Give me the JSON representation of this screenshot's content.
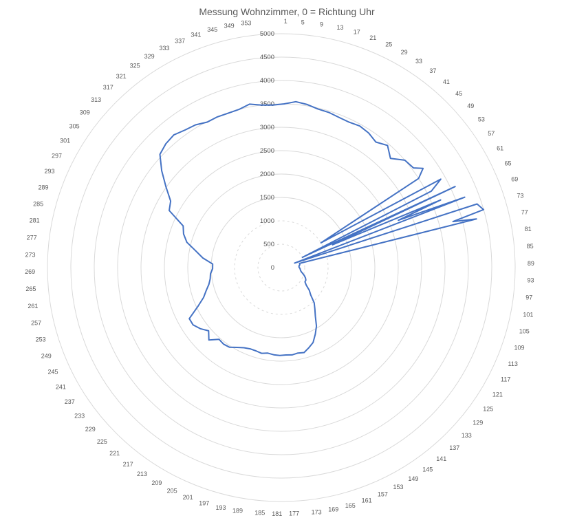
{
  "chart_data": {
    "type": "radar",
    "title": "Messung Wohnzimmer, 0 = Richtung Uhr",
    "radial_axis": {
      "min": 0,
      "max": 5000,
      "step": 500,
      "labels": [
        "0",
        "500",
        "1000",
        "1500",
        "2000",
        "2500",
        "3000",
        "3500",
        "4000",
        "4500",
        "5000"
      ]
    },
    "angle_labels": [
      "1",
      "5",
      "9",
      "13",
      "17",
      "21",
      "25",
      "29",
      "33",
      "37",
      "41",
      "45",
      "49",
      "53",
      "57",
      "61",
      "65",
      "69",
      "73",
      "77",
      "81",
      "85",
      "89",
      "93",
      "97",
      "101",
      "105",
      "109",
      "113",
      "117",
      "121",
      "125",
      "129",
      "133",
      "137",
      "141",
      "145",
      "149",
      "153",
      "157",
      "161",
      "165",
      "169",
      "173",
      "177",
      "181",
      "185",
      "189",
      "193",
      "197",
      "201",
      "205",
      "209",
      "213",
      "217",
      "221",
      "225",
      "229",
      "233",
      "237",
      "241",
      "245",
      "249",
      "253",
      "257",
      "261",
      "265",
      "269",
      "273",
      "277",
      "281",
      "285",
      "289",
      "293",
      "297",
      "301",
      "305",
      "309",
      "313",
      "317",
      "321",
      "325",
      "329",
      "333",
      "337",
      "341",
      "345",
      "349",
      "353"
    ],
    "grid": true,
    "legend": "none",
    "series": [
      {
        "color": "#4472c4",
        "points": [
          [
            1,
            3500
          ],
          [
            5,
            3560
          ],
          [
            9,
            3530
          ],
          [
            13,
            3480
          ],
          [
            17,
            3470
          ],
          [
            21,
            3440
          ],
          [
            25,
            3430
          ],
          [
            29,
            3460
          ],
          [
            33,
            3430
          ],
          [
            37,
            3360
          ],
          [
            41,
            3460
          ],
          [
            45,
            3300
          ],
          [
            49,
            3500
          ],
          [
            53,
            3540
          ],
          [
            55,
            3700
          ],
          [
            57,
            3500
          ],
          [
            58,
            1000
          ],
          [
            61,
            3900
          ],
          [
            63,
            3600
          ],
          [
            64,
            500
          ],
          [
            65,
            4100
          ],
          [
            66,
            1200
          ],
          [
            67,
            3700
          ],
          [
            68,
            2700
          ],
          [
            69,
            4200
          ],
          [
            71,
            300
          ],
          [
            72,
            4400
          ],
          [
            74,
            4500
          ],
          [
            75,
            3800
          ],
          [
            76,
            4300
          ],
          [
            77,
            400
          ],
          [
            81,
            400
          ],
          [
            85,
            380
          ],
          [
            89,
            380
          ],
          [
            93,
            400
          ],
          [
            97,
            410
          ],
          [
            101,
            430
          ],
          [
            105,
            470
          ],
          [
            109,
            520
          ],
          [
            113,
            560
          ],
          [
            117,
            590
          ],
          [
            121,
            590
          ],
          [
            125,
            650
          ],
          [
            129,
            770
          ],
          [
            133,
            860
          ],
          [
            137,
            1030
          ],
          [
            141,
            1140
          ],
          [
            145,
            1270
          ],
          [
            149,
            1460
          ],
          [
            153,
            1600
          ],
          [
            157,
            1740
          ],
          [
            161,
            1810
          ],
          [
            165,
            1880
          ],
          [
            169,
            1860
          ],
          [
            173,
            1880
          ],
          [
            177,
            1870
          ],
          [
            181,
            1880
          ],
          [
            185,
            1870
          ],
          [
            189,
            1850
          ],
          [
            193,
            1880
          ],
          [
            197,
            1860
          ],
          [
            201,
            1860
          ],
          [
            205,
            1890
          ],
          [
            209,
            1950
          ],
          [
            213,
            2030
          ],
          [
            217,
            2050
          ],
          [
            221,
            2030
          ],
          [
            225,
            2190
          ],
          [
            229,
            2060
          ],
          [
            233,
            2170
          ],
          [
            237,
            2250
          ],
          [
            241,
            2250
          ],
          [
            245,
            1970
          ],
          [
            249,
            1780
          ],
          [
            253,
            1680
          ],
          [
            257,
            1590
          ],
          [
            261,
            1540
          ],
          [
            265,
            1520
          ],
          [
            269,
            1470
          ],
          [
            273,
            1470
          ],
          [
            277,
            1690
          ],
          [
            281,
            1860
          ],
          [
            285,
            2090
          ],
          [
            289,
            2210
          ],
          [
            293,
            2280
          ],
          [
            297,
            2690
          ],
          [
            301,
            2760
          ],
          [
            305,
            3010
          ],
          [
            309,
            3290
          ],
          [
            313,
            3550
          ],
          [
            317,
            3620
          ],
          [
            321,
            3650
          ],
          [
            325,
            3590
          ],
          [
            329,
            3560
          ],
          [
            333,
            3490
          ],
          [
            337,
            3500
          ],
          [
            341,
            3490
          ],
          [
            345,
            3500
          ],
          [
            349,
            3560
          ],
          [
            353,
            3500
          ],
          [
            357,
            3480
          ]
        ]
      }
    ]
  }
}
